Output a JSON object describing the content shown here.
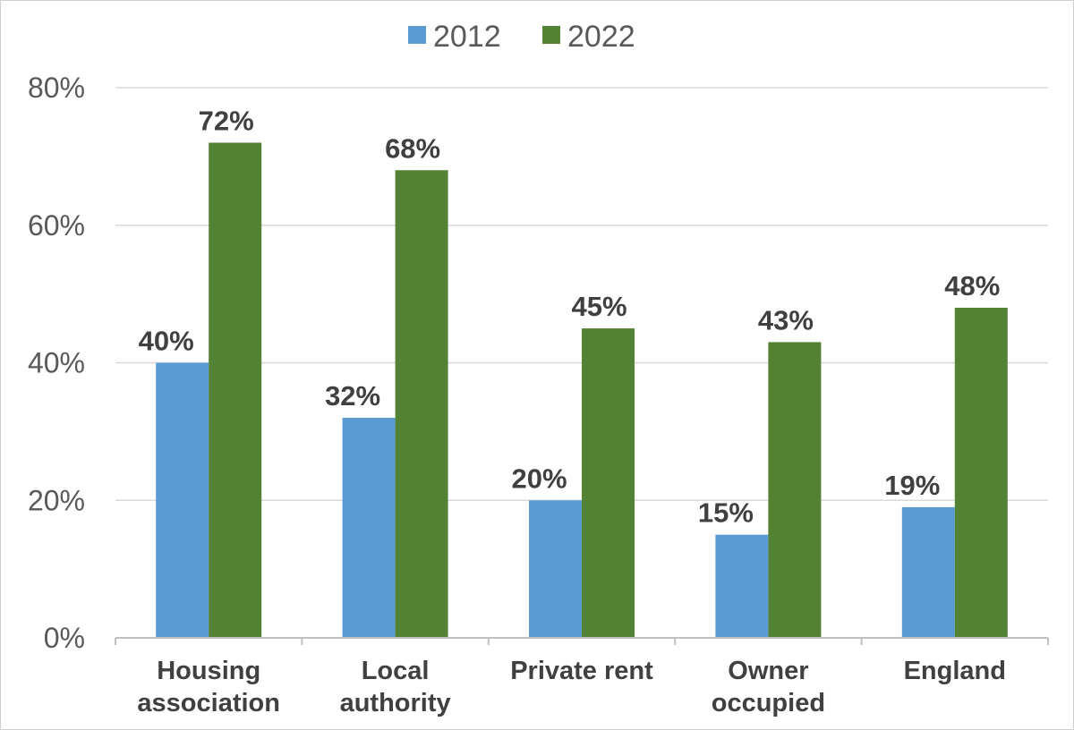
{
  "chart_data": {
    "type": "bar",
    "title": "",
    "xlabel": "",
    "ylabel": "",
    "categories": [
      [
        "Housing",
        "association"
      ],
      [
        "Local",
        "authority"
      ],
      [
        "Private rent"
      ],
      [
        "Owner",
        "occupied"
      ],
      [
        "England"
      ]
    ],
    "series": [
      {
        "name": "2012",
        "color": "#5b9bd5",
        "values": [
          40,
          32,
          20,
          15,
          19
        ],
        "labels": [
          "40%",
          "32%",
          "20%",
          "15%",
          "19%"
        ]
      },
      {
        "name": "2022",
        "color": "#548235",
        "values": [
          72,
          68,
          45,
          43,
          48
        ],
        "labels": [
          "72%",
          "68%",
          "45%",
          "43%",
          "48%"
        ]
      }
    ],
    "ylim": [
      0,
      80
    ],
    "yticks": [
      0,
      20,
      40,
      60,
      80
    ],
    "ytick_labels": [
      "0%",
      "20%",
      "40%",
      "60%",
      "80%"
    ],
    "grid": true,
    "legend_position": "top-center"
  }
}
